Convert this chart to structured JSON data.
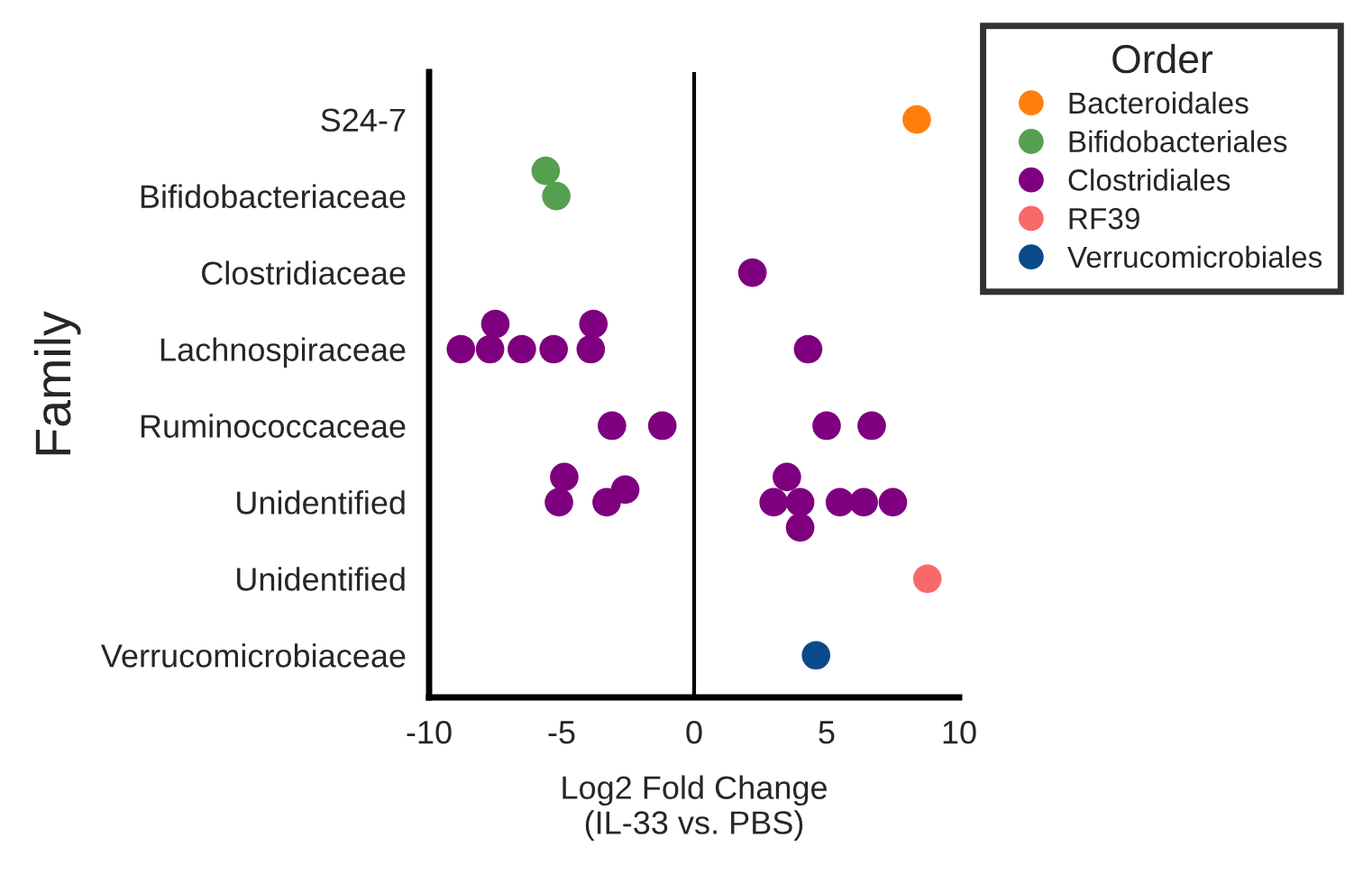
{
  "chart_data": {
    "type": "scatter",
    "orientation": "horizontal",
    "xlabel": "Log2 Fold Change\n(IL-33 vs. PBS)",
    "ylabel": "Family",
    "legend_title": "Order",
    "legend": "top right",
    "marker": "circle",
    "grid": false,
    "xlim": [
      -10,
      10
    ],
    "xticks": [
      -10,
      -5,
      0,
      5,
      10
    ],
    "categories": [
      "S24-7",
      "Bifidobacteriaceae",
      "Clostridiaceae",
      "Lachnospiraceae",
      "Ruminococcaceae",
      "Unidentified",
      "Unidentified",
      "Verrucomicrobiaceae"
    ],
    "ref_lines": [
      {
        "axis": "x",
        "value": 0,
        "color": "#000000"
      }
    ],
    "series": [
      {
        "name": "Bacteroidales",
        "color": "#ff7f0e",
        "values": [
          8.4,
          null,
          null,
          null,
          null,
          null,
          null,
          null
        ]
      },
      {
        "name": "Bifidobacteriales",
        "color": "#55a050",
        "values": [
          null,
          -5.2,
          null,
          null,
          null,
          null,
          null,
          null
        ]
      },
      {
        "color": "#55a050",
        "values": [
          null,
          -5.6,
          null,
          null,
          null,
          null,
          null,
          null
        ]
      },
      {
        "name": "Clostridiales",
        "color": "#7f007f",
        "values": [
          null,
          null,
          2.2,
          -8.8,
          -3.1,
          -5.1,
          null,
          null
        ]
      },
      {
        "color": "#7f007f",
        "values": [
          null,
          null,
          null,
          -7.7,
          -1.2,
          -4.9,
          null,
          null
        ]
      },
      {
        "color": "#7f007f",
        "values": [
          null,
          null,
          null,
          -7.5,
          5.0,
          -3.3,
          null,
          null
        ]
      },
      {
        "color": "#7f007f",
        "values": [
          null,
          null,
          null,
          -6.5,
          6.7,
          -2.6,
          null,
          null
        ]
      },
      {
        "color": "#7f007f",
        "values": [
          null,
          null,
          null,
          -5.3,
          null,
          3.0,
          null,
          null
        ]
      },
      {
        "color": "#7f007f",
        "values": [
          null,
          null,
          null,
          -3.9,
          null,
          3.5,
          null,
          null
        ]
      },
      {
        "color": "#7f007f",
        "values": [
          null,
          null,
          null,
          -3.8,
          null,
          4.0,
          null,
          null
        ]
      },
      {
        "color": "#7f007f",
        "values": [
          null,
          null,
          null,
          4.3,
          null,
          4.0,
          null,
          null
        ]
      },
      {
        "color": "#7f007f",
        "values": [
          null,
          null,
          null,
          null,
          null,
          5.5,
          null,
          null
        ]
      },
      {
        "color": "#7f007f",
        "values": [
          null,
          null,
          null,
          null,
          null,
          6.4,
          null,
          null
        ]
      },
      {
        "color": "#7f007f",
        "values": [
          null,
          null,
          null,
          null,
          null,
          7.5,
          null,
          null
        ]
      },
      {
        "name": "RF39",
        "color": "#f8696b",
        "values": [
          null,
          null,
          null,
          null,
          null,
          null,
          8.8,
          null
        ]
      },
      {
        "name": "Verrucomicrobiales",
        "color": "#0a4a8a",
        "values": [
          null,
          null,
          null,
          null,
          null,
          null,
          null,
          4.6
        ]
      }
    ]
  }
}
